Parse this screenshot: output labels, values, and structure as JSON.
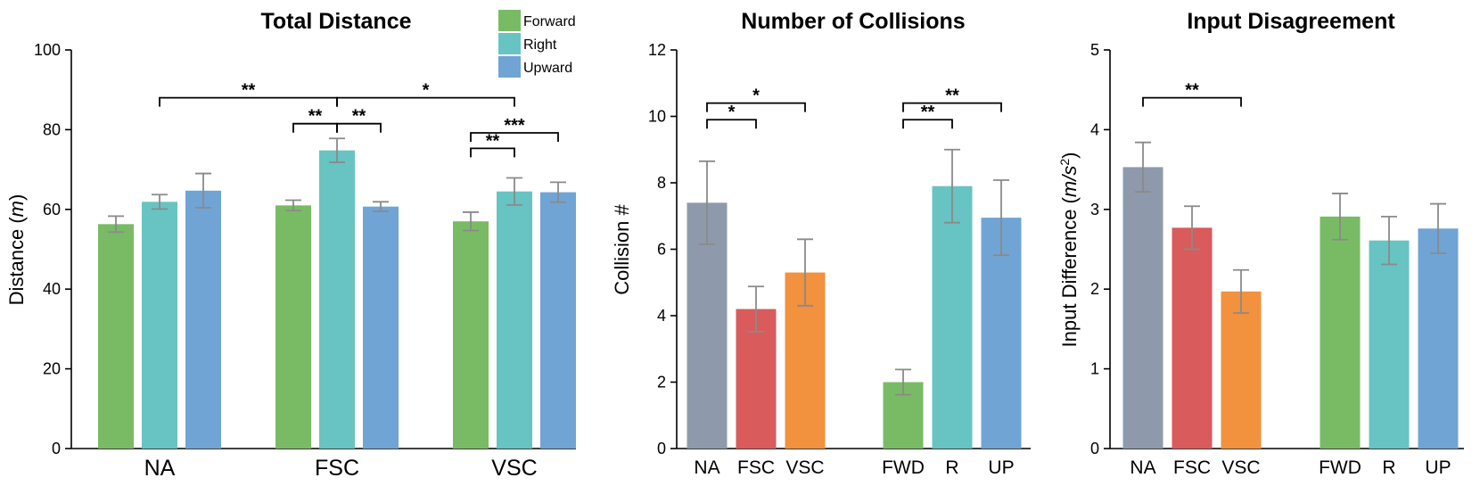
{
  "chart_data": [
    {
      "type": "bar",
      "title": "Total Distance",
      "ylabel_text": "Distance (",
      "ylabel_unit": "m",
      "ylabel_close": ")",
      "ylim": [
        0,
        100
      ],
      "yticks": [
        0,
        20,
        40,
        60,
        80,
        100
      ],
      "categories": [
        "NA",
        "FSC",
        "VSC"
      ],
      "series": [
        {
          "name": "Forward",
          "color": "#79bb65",
          "values": [
            56.3,
            61.0,
            57.0
          ],
          "errors": [
            2.0,
            1.3,
            2.3
          ]
        },
        {
          "name": "Right",
          "color": "#68c3c3",
          "values": [
            61.9,
            74.8,
            64.5
          ],
          "errors": [
            1.8,
            3.0,
            3.4
          ]
        },
        {
          "name": "Upward",
          "color": "#70a4d5",
          "values": [
            64.7,
            60.7,
            64.3
          ],
          "errors": [
            4.3,
            1.2,
            2.5
          ]
        }
      ],
      "legend": [
        "Forward",
        "Right",
        "Upward"
      ],
      "significance": [
        {
          "label": "**",
          "from": [
            0,
            1
          ],
          "to": [
            1,
            1
          ],
          "y": 88
        },
        {
          "label": "*",
          "from": [
            1,
            1
          ],
          "to": [
            2,
            1
          ],
          "y": 88
        },
        {
          "label": "**",
          "from": [
            1,
            0
          ],
          "to": [
            1,
            1
          ],
          "y": 81.5
        },
        {
          "label": "**",
          "from": [
            1,
            1
          ],
          "to": [
            1,
            2
          ],
          "y": 81.5
        },
        {
          "label": "***",
          "from": [
            2,
            0
          ],
          "to": [
            2,
            2
          ],
          "y": 79.2
        },
        {
          "label": "**",
          "from": [
            2,
            0
          ],
          "to": [
            2,
            1
          ],
          "y": 75.3
        }
      ]
    },
    {
      "type": "bar",
      "title": "Number of Collisions",
      "ylabel": "Collision #",
      "ylim": [
        0,
        12
      ],
      "yticks": [
        0,
        2,
        4,
        6,
        8,
        10,
        12
      ],
      "bars": [
        {
          "label": "NA",
          "value": 7.4,
          "error": 1.25,
          "color": "#8e9aab"
        },
        {
          "label": "FSC",
          "value": 4.2,
          "error": 0.68,
          "color": "#d95b5b"
        },
        {
          "label": "VSC",
          "value": 5.3,
          "error": 1.0,
          "color": "#f2913e"
        },
        {
          "label": "FWD",
          "value": 2.0,
          "error": 0.38,
          "color": "#79bb65"
        },
        {
          "label": "R",
          "value": 7.9,
          "error": 1.1,
          "color": "#68c3c3"
        },
        {
          "label": "UP",
          "value": 6.95,
          "error": 1.13,
          "color": "#70a4d5"
        }
      ],
      "significance": [
        {
          "label": "*",
          "from": 0,
          "to": 2,
          "y": 10.4
        },
        {
          "label": "*",
          "from": 0,
          "to": 1,
          "y": 9.9
        },
        {
          "label": "**",
          "from": 3,
          "to": 5,
          "y": 10.4
        },
        {
          "label": "**",
          "from": 3,
          "to": 4,
          "y": 9.9
        }
      ]
    },
    {
      "type": "bar",
      "title": "Input Disagreement",
      "ylabel_text": "Input Difference (",
      "ylabel_unit": "m/s",
      "ylabel_sup": "2",
      "ylabel_close": ")",
      "ylim": [
        0,
        5
      ],
      "yticks": [
        0,
        1,
        2,
        3,
        4,
        5
      ],
      "bars": [
        {
          "label": "NA",
          "value": 3.53,
          "error": 0.31,
          "color": "#8e9aab"
        },
        {
          "label": "FSC",
          "value": 2.77,
          "error": 0.27,
          "color": "#d95b5b"
        },
        {
          "label": "VSC",
          "value": 1.97,
          "error": 0.27,
          "color": "#f2913e"
        },
        {
          "label": "FWD",
          "value": 2.91,
          "error": 0.29,
          "color": "#79bb65"
        },
        {
          "label": "R",
          "value": 2.61,
          "error": 0.3,
          "color": "#68c3c3"
        },
        {
          "label": "UP",
          "value": 2.76,
          "error": 0.31,
          "color": "#70a4d5"
        }
      ],
      "significance": [
        {
          "label": "**",
          "from": 0,
          "to": 2,
          "y": 4.4
        }
      ]
    }
  ]
}
